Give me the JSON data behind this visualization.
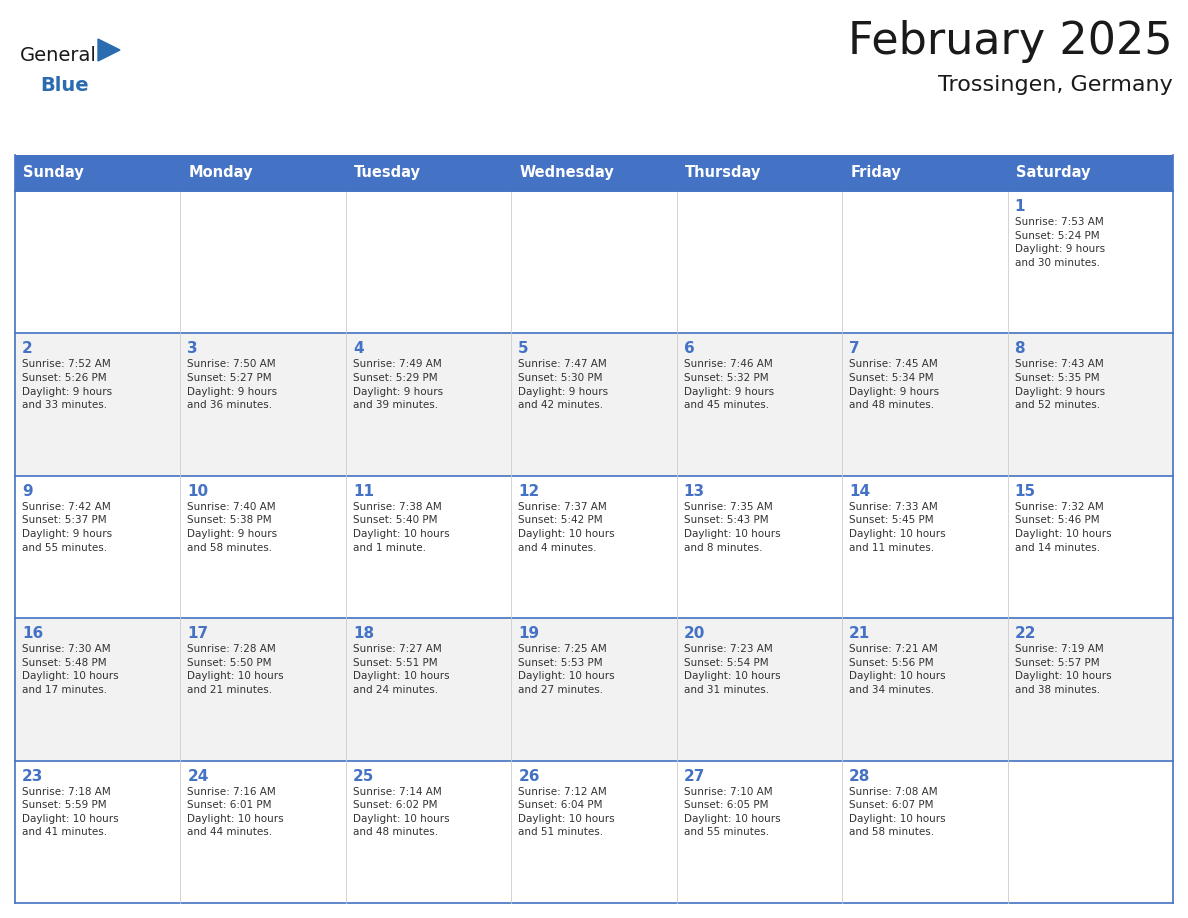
{
  "title": "February 2025",
  "subtitle": "Trossingen, Germany",
  "header_bg": "#4472C4",
  "header_text": "#FFFFFF",
  "days_of_week": [
    "Sunday",
    "Monday",
    "Tuesday",
    "Wednesday",
    "Thursday",
    "Friday",
    "Saturday"
  ],
  "row_bg_even": "#FFFFFF",
  "row_bg_odd": "#F2F2F2",
  "cell_border_color": "#4472C4",
  "cell_inner_border": "#CCCCCC",
  "day_number_color": "#4472C4",
  "info_color": "#333333",
  "title_color": "#1a1a1a",
  "subtitle_color": "#1a1a1a",
  "logo_general_color": "#1a1a1a",
  "logo_blue_color": "#2B6CB0",
  "calendar_data": [
    [
      {
        "day": "",
        "info": ""
      },
      {
        "day": "",
        "info": ""
      },
      {
        "day": "",
        "info": ""
      },
      {
        "day": "",
        "info": ""
      },
      {
        "day": "",
        "info": ""
      },
      {
        "day": "",
        "info": ""
      },
      {
        "day": "1",
        "info": "Sunrise: 7:53 AM\nSunset: 5:24 PM\nDaylight: 9 hours\nand 30 minutes."
      }
    ],
    [
      {
        "day": "2",
        "info": "Sunrise: 7:52 AM\nSunset: 5:26 PM\nDaylight: 9 hours\nand 33 minutes."
      },
      {
        "day": "3",
        "info": "Sunrise: 7:50 AM\nSunset: 5:27 PM\nDaylight: 9 hours\nand 36 minutes."
      },
      {
        "day": "4",
        "info": "Sunrise: 7:49 AM\nSunset: 5:29 PM\nDaylight: 9 hours\nand 39 minutes."
      },
      {
        "day": "5",
        "info": "Sunrise: 7:47 AM\nSunset: 5:30 PM\nDaylight: 9 hours\nand 42 minutes."
      },
      {
        "day": "6",
        "info": "Sunrise: 7:46 AM\nSunset: 5:32 PM\nDaylight: 9 hours\nand 45 minutes."
      },
      {
        "day": "7",
        "info": "Sunrise: 7:45 AM\nSunset: 5:34 PM\nDaylight: 9 hours\nand 48 minutes."
      },
      {
        "day": "8",
        "info": "Sunrise: 7:43 AM\nSunset: 5:35 PM\nDaylight: 9 hours\nand 52 minutes."
      }
    ],
    [
      {
        "day": "9",
        "info": "Sunrise: 7:42 AM\nSunset: 5:37 PM\nDaylight: 9 hours\nand 55 minutes."
      },
      {
        "day": "10",
        "info": "Sunrise: 7:40 AM\nSunset: 5:38 PM\nDaylight: 9 hours\nand 58 minutes."
      },
      {
        "day": "11",
        "info": "Sunrise: 7:38 AM\nSunset: 5:40 PM\nDaylight: 10 hours\nand 1 minute."
      },
      {
        "day": "12",
        "info": "Sunrise: 7:37 AM\nSunset: 5:42 PM\nDaylight: 10 hours\nand 4 minutes."
      },
      {
        "day": "13",
        "info": "Sunrise: 7:35 AM\nSunset: 5:43 PM\nDaylight: 10 hours\nand 8 minutes."
      },
      {
        "day": "14",
        "info": "Sunrise: 7:33 AM\nSunset: 5:45 PM\nDaylight: 10 hours\nand 11 minutes."
      },
      {
        "day": "15",
        "info": "Sunrise: 7:32 AM\nSunset: 5:46 PM\nDaylight: 10 hours\nand 14 minutes."
      }
    ],
    [
      {
        "day": "16",
        "info": "Sunrise: 7:30 AM\nSunset: 5:48 PM\nDaylight: 10 hours\nand 17 minutes."
      },
      {
        "day": "17",
        "info": "Sunrise: 7:28 AM\nSunset: 5:50 PM\nDaylight: 10 hours\nand 21 minutes."
      },
      {
        "day": "18",
        "info": "Sunrise: 7:27 AM\nSunset: 5:51 PM\nDaylight: 10 hours\nand 24 minutes."
      },
      {
        "day": "19",
        "info": "Sunrise: 7:25 AM\nSunset: 5:53 PM\nDaylight: 10 hours\nand 27 minutes."
      },
      {
        "day": "20",
        "info": "Sunrise: 7:23 AM\nSunset: 5:54 PM\nDaylight: 10 hours\nand 31 minutes."
      },
      {
        "day": "21",
        "info": "Sunrise: 7:21 AM\nSunset: 5:56 PM\nDaylight: 10 hours\nand 34 minutes."
      },
      {
        "day": "22",
        "info": "Sunrise: 7:19 AM\nSunset: 5:57 PM\nDaylight: 10 hours\nand 38 minutes."
      }
    ],
    [
      {
        "day": "23",
        "info": "Sunrise: 7:18 AM\nSunset: 5:59 PM\nDaylight: 10 hours\nand 41 minutes."
      },
      {
        "day": "24",
        "info": "Sunrise: 7:16 AM\nSunset: 6:01 PM\nDaylight: 10 hours\nand 44 minutes."
      },
      {
        "day": "25",
        "info": "Sunrise: 7:14 AM\nSunset: 6:02 PM\nDaylight: 10 hours\nand 48 minutes."
      },
      {
        "day": "26",
        "info": "Sunrise: 7:12 AM\nSunset: 6:04 PM\nDaylight: 10 hours\nand 51 minutes."
      },
      {
        "day": "27",
        "info": "Sunrise: 7:10 AM\nSunset: 6:05 PM\nDaylight: 10 hours\nand 55 minutes."
      },
      {
        "day": "28",
        "info": "Sunrise: 7:08 AM\nSunset: 6:07 PM\nDaylight: 10 hours\nand 58 minutes."
      },
      {
        "day": "",
        "info": ""
      }
    ]
  ]
}
